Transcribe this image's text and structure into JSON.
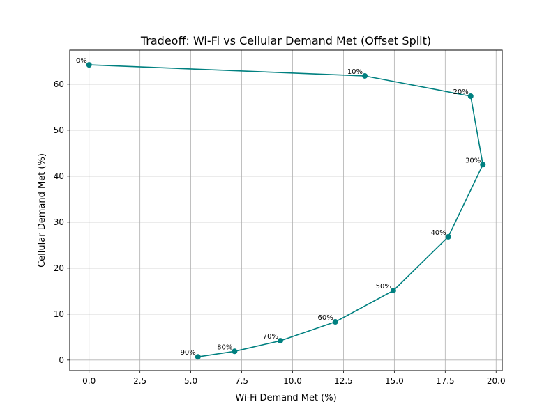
{
  "chart_data": {
    "type": "line",
    "title": "Tradeoff: Wi-Fi vs Cellular Demand Met (Offset Split)",
    "xlabel": "Wi-Fi Demand Met (%)",
    "ylabel": "Cellular Demand Met (%)",
    "xlim": [
      -0.95,
      20.3
    ],
    "ylim": [
      -2.3,
      67.4
    ],
    "xticks": [
      0.0,
      2.5,
      5.0,
      7.5,
      10.0,
      12.5,
      15.0,
      17.5,
      20.0
    ],
    "xtick_labels": [
      "0.0",
      "2.5",
      "5.0",
      "7.5",
      "10.0",
      "12.5",
      "15.0",
      "17.5",
      "20.0"
    ],
    "yticks": [
      0,
      10,
      20,
      30,
      40,
      50,
      60
    ],
    "ytick_labels": [
      "0",
      "10",
      "20",
      "30",
      "40",
      "50",
      "60"
    ],
    "grid": true,
    "color": "#008080",
    "points": [
      {
        "label": "0%",
        "x": 0.0,
        "y": 64.2
      },
      {
        "label": "10%",
        "x": 13.55,
        "y": 61.8
      },
      {
        "label": "20%",
        "x": 18.75,
        "y": 57.4
      },
      {
        "label": "30%",
        "x": 19.35,
        "y": 42.5
      },
      {
        "label": "40%",
        "x": 17.65,
        "y": 26.8
      },
      {
        "label": "50%",
        "x": 14.95,
        "y": 15.1
      },
      {
        "label": "60%",
        "x": 12.1,
        "y": 8.3
      },
      {
        "label": "70%",
        "x": 9.4,
        "y": 4.2
      },
      {
        "label": "80%",
        "x": 7.15,
        "y": 1.9
      },
      {
        "label": "90%",
        "x": 5.35,
        "y": 0.7
      }
    ]
  }
}
